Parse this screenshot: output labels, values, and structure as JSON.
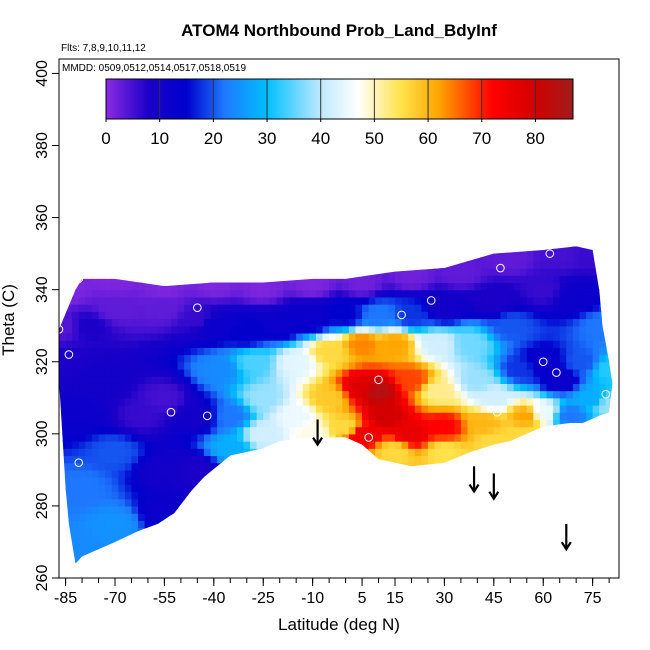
{
  "chart_data": {
    "type": "heatmap",
    "title": "ATOM4 Northbound Prob_Land_BdyInf",
    "subtitle_flights": "Flts: 7,8,9,10,11,12",
    "subtitle_dates": "MMDD: 0509,0512,0514,0517,0518,0519",
    "xlabel": "Latitude (deg N)",
    "ylabel": "Theta (C)",
    "xlim": [
      -87,
      83
    ],
    "ylim": [
      260,
      404
    ],
    "x_ticks": [
      -85,
      -70,
      -55,
      -40,
      -25,
      -10,
      5,
      15,
      30,
      45,
      60,
      75
    ],
    "x_tick_labels": [
      "-85",
      "-70",
      "-55",
      "-40",
      "-25",
      "-10",
      "5",
      "15",
      "30",
      "45",
      "60",
      "75"
    ],
    "x_minor_step": 5,
    "y_ticks": [
      260,
      280,
      300,
      320,
      340,
      360,
      380,
      400
    ],
    "y_tick_labels": [
      "260",
      "280",
      "300",
      "320",
      "340",
      "360",
      "380",
      "400"
    ],
    "colorbar": {
      "range": [
        0,
        87
      ],
      "ticks": [
        0,
        10,
        20,
        30,
        40,
        50,
        60,
        70,
        80
      ],
      "tick_labels": [
        "0",
        "10",
        "20",
        "30",
        "40",
        "50",
        "60",
        "70",
        "80"
      ],
      "divisions": [
        10,
        20,
        30,
        40,
        50,
        60,
        70,
        80
      ],
      "stops": [
        {
          "v": 0,
          "color": "#8a2be2"
        },
        {
          "v": 8,
          "color": "#1a00c8"
        },
        {
          "v": 15,
          "color": "#0000cd"
        },
        {
          "v": 22,
          "color": "#1e78ff"
        },
        {
          "v": 30,
          "color": "#00bfff"
        },
        {
          "v": 40,
          "color": "#bfe9ff"
        },
        {
          "v": 47,
          "color": "#ffffff"
        },
        {
          "v": 55,
          "color": "#ffe24a"
        },
        {
          "v": 62,
          "color": "#ffa500"
        },
        {
          "v": 72,
          "color": "#ff0000"
        },
        {
          "v": 80,
          "color": "#d20000"
        },
        {
          "v": 87,
          "color": "#a01c1c"
        }
      ]
    },
    "data_region": {
      "top_boundary": [
        [
          -87,
          329
        ],
        [
          -82,
          340
        ],
        [
          -80,
          343
        ],
        [
          -72,
          343
        ],
        [
          -70,
          343
        ],
        [
          -55,
          341
        ],
        [
          -40,
          342
        ],
        [
          -25,
          342
        ],
        [
          -10,
          343
        ],
        [
          0,
          343
        ],
        [
          15,
          345
        ],
        [
          30,
          346
        ],
        [
          45,
          350
        ],
        [
          60,
          351
        ],
        [
          70,
          352
        ],
        [
          75,
          351
        ]
      ],
      "right_boundary": [
        [
          75,
          351
        ],
        [
          77,
          340
        ],
        [
          78,
          330
        ],
        [
          80,
          320
        ],
        [
          81,
          314
        ],
        [
          80,
          306
        ],
        [
          77,
          305
        ],
        [
          72,
          303
        ],
        [
          68,
          303
        ]
      ],
      "bottom_boundary": [
        [
          68,
          303
        ],
        [
          60,
          302
        ],
        [
          55,
          300
        ],
        [
          50,
          298
        ],
        [
          45,
          297
        ],
        [
          38,
          295
        ],
        [
          30,
          292
        ],
        [
          20,
          291
        ],
        [
          10,
          293
        ],
        [
          5,
          297
        ],
        [
          0,
          299
        ],
        [
          -10,
          299
        ],
        [
          -20,
          298
        ],
        [
          -25,
          296
        ],
        [
          -35,
          294
        ],
        [
          -43,
          288
        ],
        [
          -47,
          284
        ],
        [
          -52,
          278
        ],
        [
          -57,
          275
        ],
        [
          -63,
          273
        ],
        [
          -70,
          270
        ],
        [
          -75,
          268
        ],
        [
          -80,
          266
        ],
        [
          -82,
          264
        ]
      ],
      "left_boundary": [
        [
          -82,
          264
        ],
        [
          -84,
          275
        ],
        [
          -85,
          285
        ],
        [
          -86,
          300
        ],
        [
          -87,
          315
        ],
        [
          -87,
          329
        ]
      ]
    },
    "field_nodes": [
      {
        "x": -85,
        "y": 340,
        "v": 1
      },
      {
        "x": -70,
        "y": 343,
        "v": 1
      },
      {
        "x": -55,
        "y": 341,
        "v": 1
      },
      {
        "x": -40,
        "y": 342,
        "v": 1
      },
      {
        "x": -25,
        "y": 341,
        "v": 1
      },
      {
        "x": -10,
        "y": 342,
        "v": 1
      },
      {
        "x": 5,
        "y": 342,
        "v": 2
      },
      {
        "x": 20,
        "y": 344,
        "v": 2
      },
      {
        "x": 35,
        "y": 345,
        "v": 3
      },
      {
        "x": 50,
        "y": 349,
        "v": 3
      },
      {
        "x": 65,
        "y": 350,
        "v": 5
      },
      {
        "x": 75,
        "y": 350,
        "v": 6
      },
      {
        "x": -86,
        "y": 330,
        "v": 4
      },
      {
        "x": -84,
        "y": 320,
        "v": 8
      },
      {
        "x": -78,
        "y": 330,
        "v": 8
      },
      {
        "x": -70,
        "y": 335,
        "v": 3
      },
      {
        "x": -55,
        "y": 335,
        "v": 3
      },
      {
        "x": -45,
        "y": 332,
        "v": 6
      },
      {
        "x": -40,
        "y": 330,
        "v": 12
      },
      {
        "x": -30,
        "y": 328,
        "v": 14
      },
      {
        "x": -20,
        "y": 330,
        "v": 12
      },
      {
        "x": -10,
        "y": 332,
        "v": 12
      },
      {
        "x": 0,
        "y": 333,
        "v": 15
      },
      {
        "x": 10,
        "y": 333,
        "v": 22
      },
      {
        "x": 20,
        "y": 333,
        "v": 18
      },
      {
        "x": 30,
        "y": 335,
        "v": 10
      },
      {
        "x": 45,
        "y": 337,
        "v": 8
      },
      {
        "x": 60,
        "y": 340,
        "v": 6
      },
      {
        "x": 70,
        "y": 338,
        "v": 12
      },
      {
        "x": 78,
        "y": 330,
        "v": 22
      },
      {
        "x": 80,
        "y": 318,
        "v": 32
      },
      {
        "x": 80,
        "y": 308,
        "v": 38
      },
      {
        "x": -82,
        "y": 305,
        "v": 12
      },
      {
        "x": -80,
        "y": 285,
        "v": 22
      },
      {
        "x": -82,
        "y": 268,
        "v": 24
      },
      {
        "x": -75,
        "y": 315,
        "v": 10
      },
      {
        "x": -70,
        "y": 295,
        "v": 20
      },
      {
        "x": -70,
        "y": 275,
        "v": 25
      },
      {
        "x": -62,
        "y": 305,
        "v": 6
      },
      {
        "x": -55,
        "y": 310,
        "v": 5
      },
      {
        "x": -55,
        "y": 290,
        "v": 10
      },
      {
        "x": -55,
        "y": 278,
        "v": 12
      },
      {
        "x": -45,
        "y": 305,
        "v": 10
      },
      {
        "x": -45,
        "y": 290,
        "v": 8
      },
      {
        "x": -38,
        "y": 318,
        "v": 24
      },
      {
        "x": -35,
        "y": 305,
        "v": 22
      },
      {
        "x": -35,
        "y": 296,
        "v": 28
      },
      {
        "x": -28,
        "y": 320,
        "v": 34
      },
      {
        "x": -25,
        "y": 310,
        "v": 38
      },
      {
        "x": -25,
        "y": 300,
        "v": 42
      },
      {
        "x": -15,
        "y": 320,
        "v": 44
      },
      {
        "x": -15,
        "y": 305,
        "v": 45
      },
      {
        "x": -10,
        "y": 300,
        "v": 48
      },
      {
        "x": -5,
        "y": 323,
        "v": 56
      },
      {
        "x": -5,
        "y": 310,
        "v": 58
      },
      {
        "x": 0,
        "y": 302,
        "v": 56
      },
      {
        "x": 5,
        "y": 325,
        "v": 64
      },
      {
        "x": 5,
        "y": 313,
        "v": 78
      },
      {
        "x": 5,
        "y": 300,
        "v": 75
      },
      {
        "x": 10,
        "y": 312,
        "v": 84
      },
      {
        "x": 12,
        "y": 305,
        "v": 80
      },
      {
        "x": 15,
        "y": 325,
        "v": 62
      },
      {
        "x": 20,
        "y": 315,
        "v": 68
      },
      {
        "x": 20,
        "y": 300,
        "v": 76
      },
      {
        "x": 15,
        "y": 295,
        "v": 56
      },
      {
        "x": 28,
        "y": 325,
        "v": 42
      },
      {
        "x": 28,
        "y": 312,
        "v": 52
      },
      {
        "x": 30,
        "y": 302,
        "v": 72
      },
      {
        "x": 30,
        "y": 295,
        "v": 55
      },
      {
        "x": 38,
        "y": 325,
        "v": 36
      },
      {
        "x": 40,
        "y": 315,
        "v": 38
      },
      {
        "x": 42,
        "y": 303,
        "v": 60
      },
      {
        "x": 45,
        "y": 298,
        "v": 56
      },
      {
        "x": 45,
        "y": 310,
        "v": 42
      },
      {
        "x": 50,
        "y": 330,
        "v": 20
      },
      {
        "x": 53,
        "y": 318,
        "v": 18
      },
      {
        "x": 55,
        "y": 305,
        "v": 62
      },
      {
        "x": 55,
        "y": 300,
        "v": 56
      },
      {
        "x": 60,
        "y": 320,
        "v": 12
      },
      {
        "x": 60,
        "y": 306,
        "v": 45
      },
      {
        "x": 65,
        "y": 315,
        "v": 12
      },
      {
        "x": 68,
        "y": 305,
        "v": 22
      },
      {
        "x": 72,
        "y": 320,
        "v": 20
      },
      {
        "x": 75,
        "y": 310,
        "v": 28
      }
    ],
    "observation_points": [
      {
        "x": -87,
        "y": 329
      },
      {
        "x": -84,
        "y": 322
      },
      {
        "x": -81,
        "y": 343
      },
      {
        "x": -81,
        "y": 292
      },
      {
        "x": -53,
        "y": 306
      },
      {
        "x": -51,
        "y": 276
      },
      {
        "x": -45,
        "y": 335
      },
      {
        "x": -42,
        "y": 305
      },
      {
        "x": 7,
        "y": 299
      },
      {
        "x": 10,
        "y": 315
      },
      {
        "x": 17,
        "y": 333
      },
      {
        "x": 26,
        "y": 337
      },
      {
        "x": 46,
        "y": 306
      },
      {
        "x": 47,
        "y": 346
      },
      {
        "x": 60,
        "y": 320
      },
      {
        "x": 62,
        "y": 350
      },
      {
        "x": 64,
        "y": 317
      },
      {
        "x": 79,
        "y": 311
      }
    ],
    "arrows": [
      {
        "x": -8.5,
        "y_top": 304,
        "y_tip": 297
      },
      {
        "x": 39,
        "y_top": 291,
        "y_tip": 284
      },
      {
        "x": 45,
        "y_top": 289,
        "y_tip": 282
      },
      {
        "x": 67,
        "y_top": 275,
        "y_tip": 268
      }
    ]
  }
}
